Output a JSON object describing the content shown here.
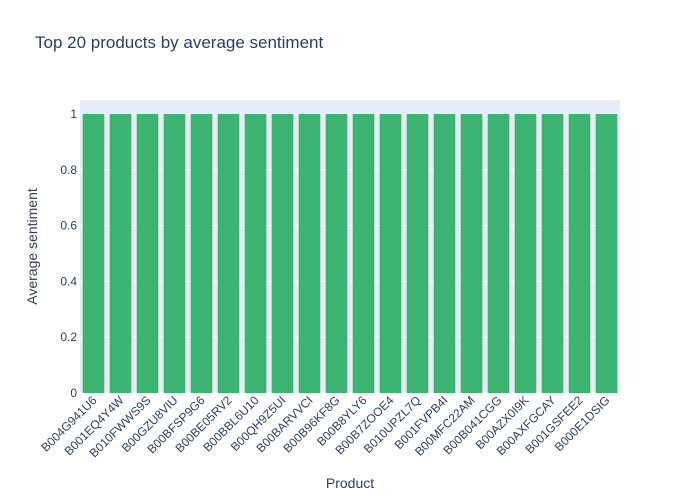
{
  "chart_data": {
    "type": "bar",
    "title": "Top 20 products by average sentiment",
    "xlabel": "Product",
    "ylabel": "Average sentiment",
    "ylim": [
      0,
      1.05
    ],
    "yticks": [
      0,
      0.2,
      0.4,
      0.6,
      0.8,
      1
    ],
    "grid": true,
    "legend": "none",
    "bar_color": "#3cb371",
    "plot_bg": "#e5ecf6",
    "categories": [
      "B004G941U6",
      "B001EQ4Y4W",
      "B010FWWS9S",
      "B00GZU8VIU",
      "B00BFSP9G6",
      "B00BE05RV2",
      "B00BBL6U10",
      "B00QH9Z5UI",
      "B00BARVVCI",
      "B00B96KF8G",
      "B00B8YLY6",
      "B00B7ZOOE4",
      "B010UPZL7Q",
      "B001FVPB4I",
      "B00MFC22AM",
      "B00B041CGG",
      "B00AZX0I9K",
      "B00AXFGCAY",
      "B001GSFEE2",
      "B000E1DSIG"
    ],
    "values": [
      1,
      1,
      1,
      1,
      1,
      1,
      1,
      1,
      1,
      1,
      1,
      1,
      1,
      1,
      1,
      1,
      1,
      1,
      1,
      1
    ]
  }
}
